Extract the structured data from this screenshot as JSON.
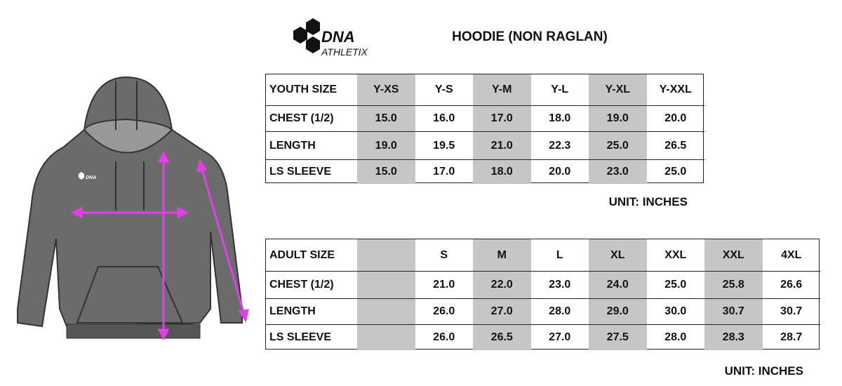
{
  "logo": {
    "name": "DNA",
    "tagline": "ATHLETIX"
  },
  "title": "HOODIE (NON RAGLAN)",
  "youth_table": {
    "header": [
      "YOUTH SIZE",
      "Y-XS",
      "Y-S",
      "Y-M",
      "Y-L",
      "Y-XL",
      "Y-XXL"
    ],
    "rows": [
      [
        "CHEST (1/2)",
        "15.0",
        "16.0",
        "17.0",
        "18.0",
        "19.0",
        "20.0"
      ],
      [
        "LENGTH",
        "19.0",
        "19.5",
        "21.0",
        "22.3",
        "25.0",
        "26.5"
      ],
      [
        "LS SLEEVE",
        "15.0",
        "17.0",
        "18.0",
        "20.0",
        "23.0",
        "25.0"
      ]
    ],
    "unit": "UNIT: INCHES"
  },
  "adult_table": {
    "header": [
      "ADULT SIZE",
      null,
      "S",
      "M",
      "L",
      "XL",
      "XXL",
      "XXL",
      "4XL"
    ],
    "rows": [
      [
        "CHEST (1/2)",
        null,
        "21.0",
        "22.0",
        "23.0",
        "24.0",
        "25.0",
        "25.8",
        "26.6"
      ],
      [
        "LENGTH",
        null,
        "26.0",
        "27.0",
        "28.0",
        "29.0",
        "30.0",
        "30.7",
        "30.7"
      ],
      [
        "LS SLEEVE",
        null,
        "26.0",
        "26.5",
        "27.0",
        "27.5",
        "28.0",
        "28.3",
        "28.7"
      ]
    ],
    "unit": "UNIT: INCHES"
  }
}
